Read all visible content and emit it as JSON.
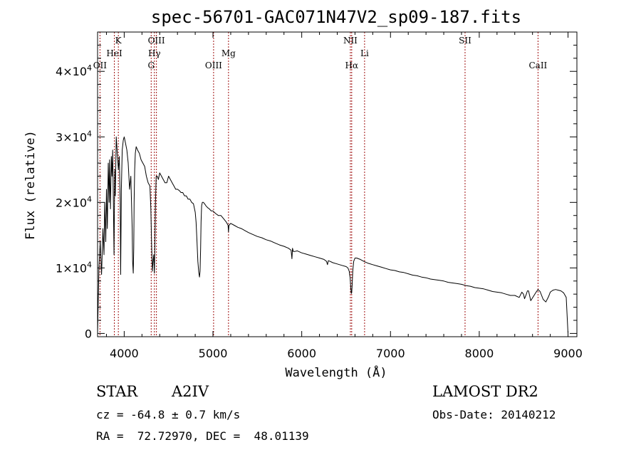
{
  "chart_data": {
    "type": "line",
    "title": "spec-56701-GAC071N47V2_sp09-187.fits",
    "xlabel": "Wavelength (Å)",
    "ylabel": "Flux (relative)",
    "xlim": [
      3700,
      9100
    ],
    "ylim": [
      -500,
      46000
    ],
    "x_ticks": [
      {
        "value": 4000,
        "label": "4000"
      },
      {
        "value": 5000,
        "label": "5000"
      },
      {
        "value": 6000,
        "label": "6000"
      },
      {
        "value": 7000,
        "label": "7000"
      },
      {
        "value": 8000,
        "label": "8000"
      },
      {
        "value": 9000,
        "label": "9000"
      }
    ],
    "y_ticks": [
      {
        "value": 0,
        "label": "0",
        "mantissa": "",
        "exp": ""
      },
      {
        "value": 10000,
        "label": "1×10⁴",
        "mantissa": "1×10",
        "exp": "4"
      },
      {
        "value": 20000,
        "label": "2×10⁴",
        "mantissa": "2×10",
        "exp": "4"
      },
      {
        "value": 30000,
        "label": "3×10⁴",
        "mantissa": "3×10",
        "exp": "4"
      },
      {
        "value": 40000,
        "label": "4×10⁴",
        "mantissa": "4×10",
        "exp": "4"
      }
    ],
    "line_markers": [
      {
        "label": "OII",
        "wavelength": 3727,
        "row": 3
      },
      {
        "label": "HeI",
        "wavelength": 3889,
        "row": 2
      },
      {
        "label": "K",
        "wavelength": 3934,
        "row": 1
      },
      {
        "label": "G",
        "wavelength": 4304,
        "row": 3
      },
      {
        "label": "Hγ",
        "wavelength": 4340,
        "row": 2
      },
      {
        "label": "OIII",
        "wavelength": 4363,
        "row": 1
      },
      {
        "label": "OIII",
        "wavelength": 5007,
        "row": 3
      },
      {
        "label": "Mg",
        "wavelength": 5175,
        "row": 2
      },
      {
        "label": "NII",
        "wavelength": 6548,
        "row": 1
      },
      {
        "label": "Hα",
        "wavelength": 6563,
        "row": 3
      },
      {
        "label": "Li",
        "wavelength": 6708,
        "row": 2
      },
      {
        "label": "SII",
        "wavelength": 7840,
        "row": 1
      },
      {
        "label": "CaII",
        "wavelength": 8662,
        "row": 3
      }
    ],
    "series": [
      {
        "color": "#000000",
        "x": [
          3700,
          3715,
          3730,
          3745,
          3760,
          3772,
          3780,
          3792,
          3800,
          3810,
          3820,
          3830,
          3835,
          3845,
          3855,
          3862,
          3870,
          3878,
          3885,
          3893,
          3900,
          3910,
          3922,
          3934,
          3945,
          3955,
          3960,
          3968,
          3978,
          3990,
          4000,
          4015,
          4030,
          4045,
          4060,
          4075,
          4090,
          4095,
          4102,
          4108,
          4112,
          4118,
          4125,
          4135,
          4150,
          4170,
          4190,
          4210,
          4230,
          4250,
          4270,
          4290,
          4300,
          4310,
          4318,
          4325,
          4333,
          4340,
          4345,
          4352,
          4360,
          4372,
          4385,
          4400,
          4420,
          4440,
          4460,
          4480,
          4500,
          4520,
          4540,
          4560,
          4580,
          4600,
          4620,
          4640,
          4660,
          4680,
          4700,
          4720,
          4740,
          4760,
          4780,
          4800,
          4810,
          4820,
          4830,
          4840,
          4848,
          4855,
          4861,
          4866,
          4872,
          4880,
          4892,
          4905,
          4920,
          4940,
          4960,
          4980,
          5000,
          5030,
          5060,
          5090,
          5120,
          5150,
          5170,
          5175,
          5180,
          5200,
          5240,
          5280,
          5320,
          5360,
          5400,
          5450,
          5500,
          5550,
          5600,
          5650,
          5700,
          5750,
          5800,
          5850,
          5880,
          5890,
          5896,
          5905,
          5920,
          5950,
          6000,
          6050,
          6100,
          6150,
          6200,
          6250,
          6280,
          6290,
          6300,
          6320,
          6350,
          6400,
          6450,
          6500,
          6520,
          6535,
          6545,
          6552,
          6558,
          6563,
          6568,
          6575,
          6585,
          6600,
          6620,
          6640,
          6660,
          6700,
          6750,
          6800,
          6850,
          6900,
          6950,
          7000,
          7050,
          7100,
          7150,
          7200,
          7250,
          7300,
          7350,
          7400,
          7450,
          7500,
          7550,
          7600,
          7650,
          7700,
          7750,
          7800,
          7850,
          7900,
          7950,
          8000,
          8050,
          8100,
          8150,
          8200,
          8250,
          8300,
          8350,
          8400,
          8450,
          8480,
          8498,
          8510,
          8530,
          8542,
          8555,
          8580,
          8640,
          8662,
          8685,
          8720,
          8750,
          8780,
          8800,
          8830,
          8860,
          8890,
          8920,
          8950,
          8980,
          9000
        ],
        "y": [
          0,
          10000,
          14000,
          9000,
          16000,
          12000,
          20000,
          14000,
          22000,
          16000,
          26000,
          20000,
          26500,
          19000,
          27000,
          24000,
          28000,
          20000,
          12000,
          25000,
          21000,
          30000,
          27500,
          25000,
          27000,
          20000,
          9000,
          22000,
          28000,
          29500,
          30000,
          29000,
          28000,
          26000,
          22000,
          24000,
          16000,
          11000,
          9200,
          13000,
          20000,
          25000,
          27500,
          28500,
          28000,
          27500,
          26500,
          26000,
          25500,
          24000,
          23000,
          22500,
          19000,
          13000,
          9500,
          11000,
          12000,
          9200,
          13000,
          20000,
          24000,
          24000,
          23500,
          24500,
          24000,
          23500,
          23000,
          23000,
          24000,
          23500,
          23000,
          22500,
          22000,
          22000,
          21800,
          21500,
          21500,
          21000,
          21000,
          20500,
          20500,
          20000,
          19800,
          18500,
          17000,
          14000,
          11000,
          9300,
          8600,
          9500,
          13000,
          17000,
          19500,
          20000,
          20000,
          19800,
          19500,
          19200,
          19000,
          18700,
          18700,
          18300,
          18000,
          18000,
          17500,
          17000,
          16500,
          15500,
          16500,
          16800,
          16500,
          16200,
          16000,
          15700,
          15400,
          15100,
          14800,
          14600,
          14300,
          14100,
          13800,
          13500,
          13300,
          13000,
          12700,
          11400,
          13000,
          12500,
          12500,
          12600,
          12300,
          12100,
          11900,
          11700,
          11500,
          11300,
          11000,
          10500,
          11100,
          11000,
          10800,
          10600,
          10400,
          10200,
          10000,
          9500,
          8500,
          7200,
          6100,
          6200,
          7300,
          9500,
          11000,
          11500,
          11500,
          11400,
          11300,
          11000,
          10700,
          10500,
          10300,
          10100,
          9900,
          9700,
          9600,
          9400,
          9300,
          9100,
          8900,
          8800,
          8600,
          8500,
          8300,
          8200,
          8100,
          8000,
          7800,
          7700,
          7600,
          7500,
          7300,
          7200,
          7000,
          6900,
          6800,
          6600,
          6400,
          6300,
          6200,
          6000,
          5800,
          5800,
          5500,
          6300,
          6000,
          5300,
          6000,
          6500,
          6500,
          5000,
          6300,
          6700,
          6400,
          5200,
          4800,
          5600,
          6300,
          6600,
          6700,
          6600,
          6500,
          6200,
          5500,
          0
        ]
      }
    ]
  },
  "info": {
    "object_type": "STAR",
    "subclass": "A2IV",
    "redshift": "cz = -64.8 ± 0.7 km/s",
    "coords": "RA =  72.72970, DEC =  48.01139",
    "survey": "LAMOST DR2",
    "obs_date": "Obs-Date: 20140212"
  }
}
